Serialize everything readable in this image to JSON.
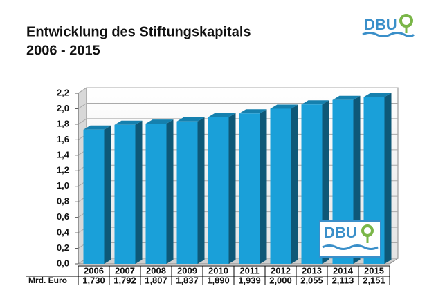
{
  "chart_data": {
    "type": "bar3d",
    "title": "Entwicklung des Stiftungskapitals",
    "subtitle": "2006 - 2015",
    "categories": [
      "2006",
      "2007",
      "2008",
      "2009",
      "2010",
      "2011",
      "2012",
      "2013",
      "2014",
      "2015"
    ],
    "series": [
      {
        "name": "Mrd. Euro",
        "color": "#1aa0d9",
        "values": [
          1.73,
          1.792,
          1.807,
          1.837,
          1.89,
          1.939,
          2.0,
          2.055,
          2.113,
          2.151
        ],
        "value_labels": [
          "1,730",
          "1,792",
          "1,807",
          "1,837",
          "1,890",
          "1,939",
          "2,000",
          "2,055",
          "2,113",
          "2,151"
        ]
      }
    ],
    "ylim": [
      0,
      2.2
    ],
    "yticks": [
      {
        "value": 0,
        "label": "0,0"
      },
      {
        "value": 0.2,
        "label": "0,2"
      },
      {
        "value": 0.4,
        "label": "0,4"
      },
      {
        "value": 0.6,
        "label": "0,6"
      },
      {
        "value": 0.8,
        "label": "0,8"
      },
      {
        "value": 1.0,
        "label": "1,0"
      },
      {
        "value": 1.2,
        "label": "1,2"
      },
      {
        "value": 1.4,
        "label": "1,4"
      },
      {
        "value": 1.6,
        "label": "1,6"
      },
      {
        "value": 1.8,
        "label": "1,8"
      },
      {
        "value": 2.0,
        "label": "2,0"
      },
      {
        "value": 2.2,
        "label": "2,2"
      }
    ],
    "grid": true
  },
  "logos": [
    "DBU",
    "DBU"
  ]
}
